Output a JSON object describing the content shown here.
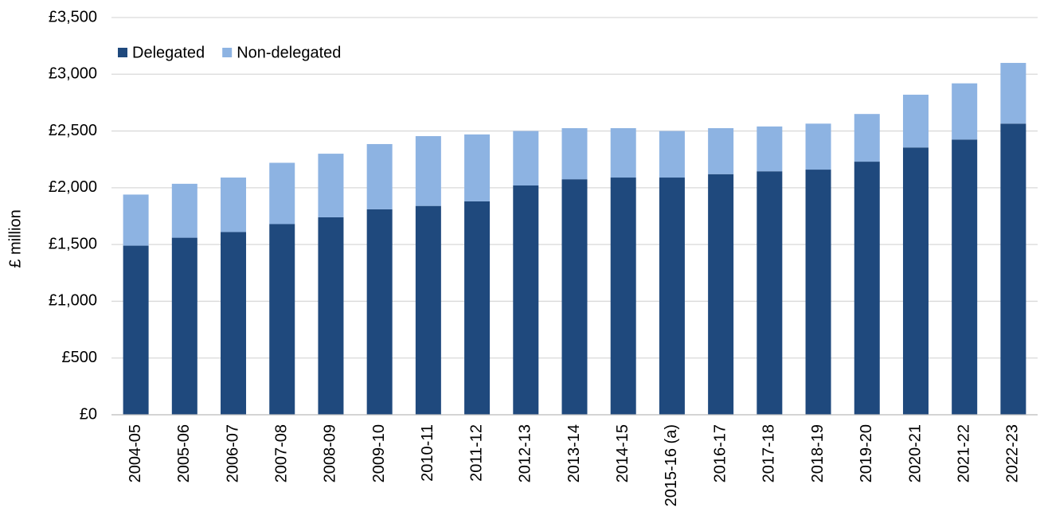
{
  "chart_data": {
    "type": "stacked_bar",
    "y_label": "£ million",
    "categories": [
      "2004-05",
      "2005-06",
      "2006-07",
      "2007-08",
      "2008-09",
      "2009-10",
      "2010-11",
      "2011-12",
      "2012-13",
      "2013-14",
      "2014-15",
      "2015-16 (a)",
      "2016-17",
      "2017-18",
      "2018-19",
      "2019-20",
      "2020-21",
      "2021-22",
      "2022-23"
    ],
    "series": [
      {
        "name": "Delegated",
        "color": "#1f497d",
        "values": [
          1490,
          1560,
          1610,
          1680,
          1740,
          1810,
          1840,
          1880,
          2020,
          2075,
          2090,
          2090,
          2120,
          2145,
          2160,
          2230,
          2355,
          2425,
          2565
        ]
      },
      {
        "name": "Non-delegated",
        "color": "#8db3e2",
        "values": [
          450,
          475,
          480,
          540,
          560,
          575,
          615,
          590,
          480,
          450,
          435,
          410,
          405,
          395,
          405,
          420,
          465,
          495,
          535
        ]
      }
    ],
    "ylim": [
      0,
      3500
    ],
    "yticks": [
      {
        "value": 0,
        "label": "£0"
      },
      {
        "value": 500,
        "label": "£500"
      },
      {
        "value": 1000,
        "label": "£1,000"
      },
      {
        "value": 1500,
        "label": "£1,500"
      },
      {
        "value": 2000,
        "label": "£2,000"
      },
      {
        "value": 2500,
        "label": "£2,500"
      },
      {
        "value": 3000,
        "label": "£3,000"
      },
      {
        "value": 3500,
        "label": "£3,500"
      }
    ],
    "grid": true,
    "legend": "top-left"
  }
}
